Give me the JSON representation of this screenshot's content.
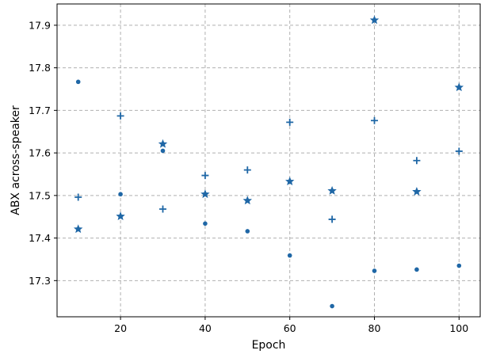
{
  "chart_data": {
    "type": "scatter",
    "title": "",
    "xlabel": "Epoch",
    "ylabel": "ABX across-speaker",
    "xlim": [
      5,
      105
    ],
    "ylim": [
      17.215,
      17.95
    ],
    "x_ticks": [
      20,
      40,
      60,
      80,
      100
    ],
    "y_ticks": [
      17.3,
      17.4,
      17.5,
      17.6,
      17.7,
      17.8,
      17.9
    ],
    "x_tick_labels": [
      "20",
      "40",
      "60",
      "80",
      "100"
    ],
    "y_tick_labels": [
      "17.3",
      "17.4",
      "17.5",
      "17.6",
      "17.7",
      "17.8",
      "17.9"
    ],
    "grid": true,
    "color": "#1f67a6",
    "series": [
      {
        "marker": "circle",
        "points": [
          [
            10,
            17.767
          ],
          [
            20,
            17.503
          ],
          [
            30,
            17.605
          ],
          [
            40,
            17.434
          ],
          [
            50,
            17.416
          ],
          [
            60,
            17.359
          ],
          [
            70,
            17.24
          ],
          [
            80,
            17.323
          ],
          [
            90,
            17.326
          ],
          [
            100,
            17.335
          ]
        ]
      },
      {
        "marker": "plus",
        "points": [
          [
            10,
            17.496
          ],
          [
            20,
            17.687
          ],
          [
            30,
            17.468
          ],
          [
            40,
            17.547
          ],
          [
            50,
            17.56
          ],
          [
            60,
            17.672
          ],
          [
            70,
            17.444
          ],
          [
            80,
            17.676
          ],
          [
            90,
            17.582
          ],
          [
            100,
            17.604
          ]
        ]
      },
      {
        "marker": "star",
        "points": [
          [
            10,
            17.421
          ],
          [
            20,
            17.451
          ],
          [
            30,
            17.621
          ],
          [
            40,
            17.503
          ],
          [
            50,
            17.488
          ],
          [
            60,
            17.533
          ],
          [
            70,
            17.511
          ],
          [
            80,
            17.912
          ],
          [
            90,
            17.509
          ],
          [
            100,
            17.754
          ]
        ]
      }
    ]
  }
}
